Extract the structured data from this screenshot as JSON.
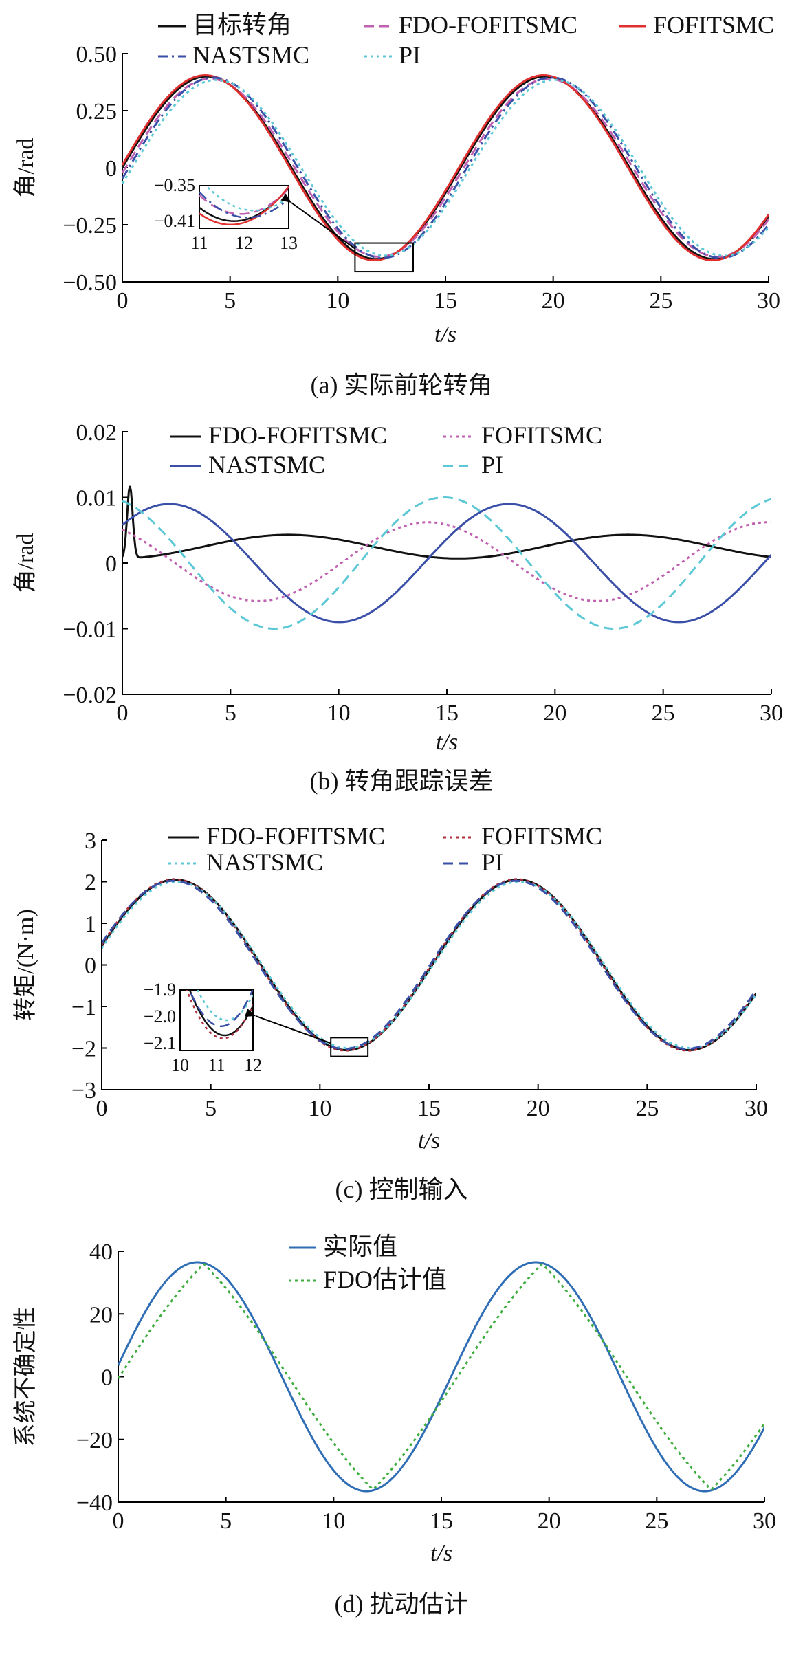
{
  "colors": {
    "black": "#111111",
    "red": "#e03030",
    "magenta": "#c060b0",
    "navy": "#3a4fa8",
    "cyan": "#5cc8d6",
    "blue": "#2f6db5",
    "green": "#3fae3f"
  },
  "chart_data": [
    {
      "type": "line",
      "caption": "(a) 实际前轮转角",
      "ylabel": "角/rad",
      "xlabel": "t/s",
      "xlim": [
        0,
        30
      ],
      "ylim": [
        -0.5,
        0.5
      ],
      "xticks": [
        "0",
        "5",
        "10",
        "15",
        "20",
        "25",
        "30"
      ],
      "yticks": [
        "−0.50",
        "−0.25",
        "0",
        "0.25",
        "0.50"
      ],
      "legend_position": "top",
      "series": [
        {
          "name": "目标转角",
          "color": "#111111",
          "dash": "solid",
          "kind": "sin",
          "amp": 0.4,
          "period": 15.7,
          "phase": 0
        },
        {
          "name": "FDO-FOFITSMC",
          "color": "#c060b0",
          "dash": "dash",
          "kind": "sin",
          "amp": 0.39,
          "period": 15.7,
          "phase": -0.06
        },
        {
          "name": "FOFITSMC",
          "color": "#e03030",
          "dash": "solid",
          "kind": "sin",
          "amp": 0.405,
          "period": 15.7,
          "phase": 0.03
        },
        {
          "name": "NASTSMC",
          "color": "#3a4fa8",
          "dash": "dashdot",
          "kind": "sin",
          "amp": 0.395,
          "period": 15.7,
          "phase": -0.12
        },
        {
          "name": "PI",
          "color": "#5cc8d6",
          "dash": "dot",
          "kind": "sin",
          "amp": 0.385,
          "period": 15.7,
          "phase": -0.18
        }
      ],
      "inset": {
        "xlim": [
          11,
          13
        ],
        "ylim": [
          -0.41,
          -0.35
        ],
        "xticks": [
          "11",
          "12",
          "13"
        ],
        "yticks": [
          "−0.35",
          "−0.41"
        ],
        "zoom_box": {
          "x": [
            10.8,
            13.5
          ],
          "y": [
            -0.455,
            -0.33
          ]
        }
      }
    },
    {
      "type": "line",
      "caption": "(b) 转角跟踪误差",
      "ylabel": "角/rad",
      "xlabel": "t/s",
      "xlim": [
        0,
        30
      ],
      "ylim": [
        -0.02,
        0.02
      ],
      "xticks": [
        "0",
        "5",
        "10",
        "15",
        "20",
        "25",
        "30"
      ],
      "yticks": [
        "−0.02",
        "−0.01",
        "0",
        "0.01",
        "0.02"
      ],
      "legend_position": "top",
      "series": [
        {
          "name": "FDO-FOFITSMC",
          "color": "#111111",
          "dash": "solid",
          "kind": "error_black"
        },
        {
          "name": "FOFITSMC",
          "color": "#c060b0",
          "dash": "dot",
          "kind": "sin",
          "amp": 0.006,
          "period": 15.7,
          "phase": 2.2,
          "offset": 0.0002
        },
        {
          "name": "NASTSMC",
          "color": "#3a4fa8",
          "dash": "solid",
          "kind": "sin",
          "amp": 0.009,
          "period": 15.7,
          "phase": 0.7,
          "offset": 0.0
        },
        {
          "name": "PI",
          "color": "#5cc8d6",
          "dash": "dash",
          "kind": "sin",
          "amp": 0.01,
          "period": 15.7,
          "phase": 1.9,
          "offset": 0.0
        }
      ]
    },
    {
      "type": "line",
      "caption": "(c) 控制输入",
      "ylabel": "转矩/(N·m)",
      "xlabel": "t/s",
      "xlim": [
        0,
        30
      ],
      "ylim": [
        -3,
        3
      ],
      "xticks": [
        "0",
        "5",
        "10",
        "15",
        "20",
        "25",
        "30"
      ],
      "yticks": [
        "−3",
        "−2",
        "−1",
        "0",
        "1",
        "2",
        "3"
      ],
      "legend_position": "top",
      "series": [
        {
          "name": "FDO-FOFITSMC",
          "color": "#111111",
          "dash": "solid",
          "kind": "sin",
          "amp": 2.05,
          "period": 15.7,
          "phase": 0.22
        },
        {
          "name": "FOFITSMC",
          "color": "#b03040",
          "dash": "dot",
          "kind": "sin",
          "amp": 2.06,
          "period": 15.7,
          "phase": 0.24
        },
        {
          "name": "NASTSMC",
          "color": "#5cc8d6",
          "dash": "dot",
          "kind": "sin",
          "amp": 2.0,
          "period": 15.7,
          "phase": 0.2
        },
        {
          "name": "PI",
          "color": "#3a4fa8",
          "dash": "dash",
          "kind": "sin",
          "amp": 2.02,
          "period": 15.7,
          "phase": 0.26
        }
      ],
      "inset": {
        "xlim": [
          10,
          12
        ],
        "ylim": [
          -2.1,
          -1.9
        ],
        "xticks": [
          "10",
          "11",
          "12"
        ],
        "yticks": [
          "−1.9",
          "−2.0",
          "−2.1"
        ],
        "zoom_box": {
          "x": [
            10.5,
            12.2
          ],
          "y": [
            -2.2,
            -1.75
          ]
        }
      }
    },
    {
      "type": "line",
      "caption": "(d) 扰动估计",
      "ylabel": "系统不确定性",
      "xlabel": "t/s",
      "xlim": [
        0,
        30
      ],
      "ylim": [
        -40,
        40
      ],
      "xticks": [
        "0",
        "5",
        "10",
        "15",
        "20",
        "25",
        "30"
      ],
      "yticks": [
        "−40",
        "−20",
        "0",
        "20",
        "40"
      ],
      "legend_position": "top",
      "series": [
        {
          "name": "实际值",
          "color": "#2f6db5",
          "dash": "solid",
          "kind": "sin",
          "amp": 36.5,
          "period": 15.7,
          "phase": 0.1
        },
        {
          "name": "FDO估计值",
          "color": "#3fae3f",
          "dash": "dot",
          "kind": "tri",
          "amp": 36,
          "period": 15.7,
          "phase": 0.0
        }
      ]
    }
  ]
}
